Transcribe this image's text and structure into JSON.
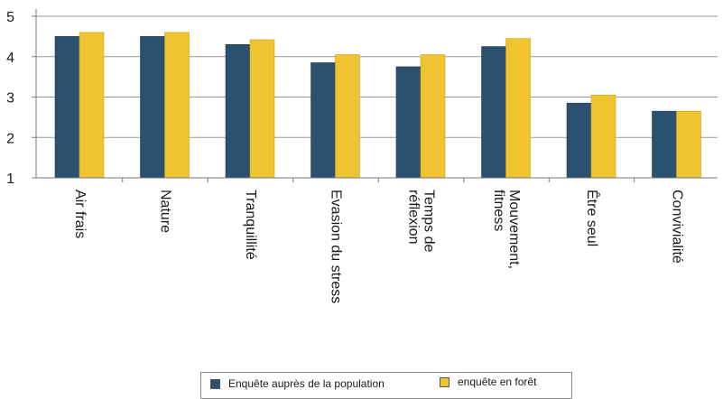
{
  "chart_data": {
    "type": "bar",
    "categories": [
      [
        "Air frais"
      ],
      [
        "Nature"
      ],
      [
        "Tranquillité"
      ],
      [
        "Evasion du stress"
      ],
      [
        "Temps de",
        "réflexion"
      ],
      [
        "Mouvement,",
        "fitness"
      ],
      [
        "Être seul"
      ],
      [
        "Convivialité"
      ]
    ],
    "series": [
      {
        "name": "Enquête auprès de la population",
        "values": [
          4.5,
          4.5,
          4.3,
          3.85,
          3.75,
          4.25,
          2.85,
          2.65
        ]
      },
      {
        "name": "enquête en forêt",
        "values": [
          4.6,
          4.6,
          4.42,
          4.05,
          4.05,
          4.45,
          3.05,
          2.65
        ]
      }
    ],
    "yticks": [
      1,
      2,
      3,
      4,
      5
    ],
    "ylim": [
      1,
      5
    ],
    "grid": true,
    "legend_position": "bottom",
    "colors": {
      "series_1": "#2b5070",
      "series_2": "#f0c330",
      "grid": "#9a9a9a",
      "axis": "#777777"
    }
  }
}
